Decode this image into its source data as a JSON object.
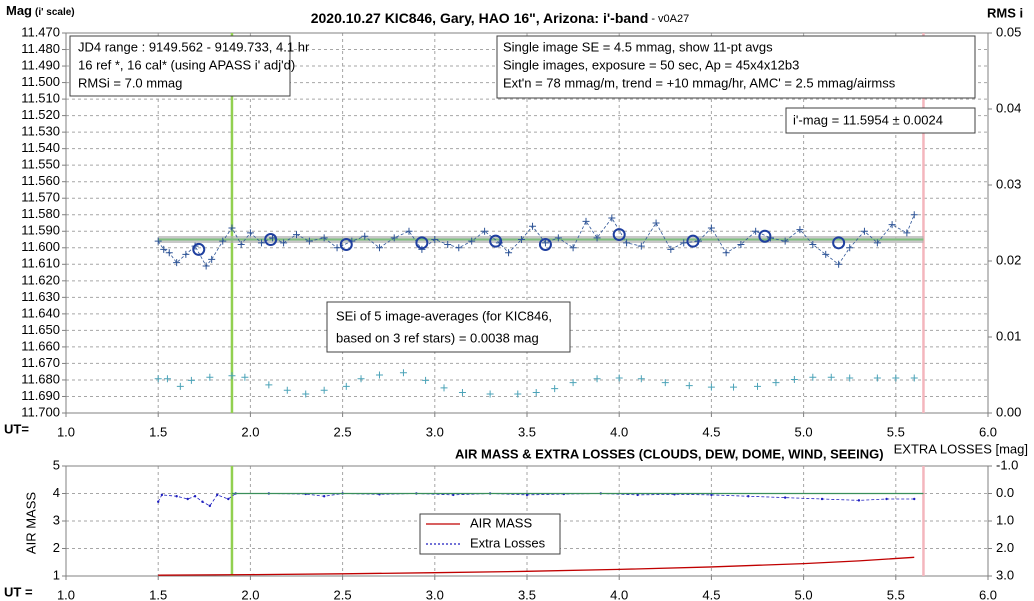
{
  "chart_data": [
    {
      "type": "scatter",
      "title": "2020.10.27 KIC846, Gary, HAO 16\", Arizona: i'-band",
      "subtitle": " - v0A27",
      "y_label": "Mag",
      "y_label_note": "(i' scale)",
      "y2_label": "RMS i",
      "x_label": "UT=",
      "xlim": [
        1.0,
        6.0
      ],
      "xticks": [
        {
          "value": 1.0,
          "label": "1.0"
        },
        {
          "value": 1.5,
          "label": "1.5"
        },
        {
          "value": 2.0,
          "label": "2.0"
        },
        {
          "value": 2.5,
          "label": "2.5"
        },
        {
          "value": 3.0,
          "label": "3.0"
        },
        {
          "value": 3.5,
          "label": "3.5"
        },
        {
          "value": 4.0,
          "label": "4.0"
        },
        {
          "value": 4.5,
          "label": "4.5"
        },
        {
          "value": 5.0,
          "label": "5.0"
        },
        {
          "value": 5.5,
          "label": "5.5"
        },
        {
          "value": 6.0,
          "label": "6.0"
        }
      ],
      "ylim": [
        11.7,
        11.47
      ],
      "yticks": [
        {
          "value": 11.47,
          "label": "11.470"
        },
        {
          "value": 11.48,
          "label": "11.480"
        },
        {
          "value": 11.49,
          "label": "11.490"
        },
        {
          "value": 11.5,
          "label": "11.500"
        },
        {
          "value": 11.51,
          "label": "11.510"
        },
        {
          "value": 11.52,
          "label": "11.520"
        },
        {
          "value": 11.53,
          "label": "11.530"
        },
        {
          "value": 11.54,
          "label": "11.540"
        },
        {
          "value": 11.55,
          "label": "11.550"
        },
        {
          "value": 11.56,
          "label": "11.560"
        },
        {
          "value": 11.57,
          "label": "11.570"
        },
        {
          "value": 11.58,
          "label": "11.580"
        },
        {
          "value": 11.59,
          "label": "11.590"
        },
        {
          "value": 11.6,
          "label": "11.600"
        },
        {
          "value": 11.61,
          "label": "11.610"
        },
        {
          "value": 11.62,
          "label": "11.620"
        },
        {
          "value": 11.63,
          "label": "11.630"
        },
        {
          "value": 11.64,
          "label": "11.640"
        },
        {
          "value": 11.65,
          "label": "11.650"
        },
        {
          "value": 11.66,
          "label": "11.660"
        },
        {
          "value": 11.67,
          "label": "11.670"
        },
        {
          "value": 11.68,
          "label": "11.680"
        },
        {
          "value": 11.69,
          "label": "11.690"
        },
        {
          "value": 11.7,
          "label": "11.700"
        }
      ],
      "y2lim": [
        0.0,
        0.05
      ],
      "y2ticks": [
        {
          "value": 0,
          "label": "0.00"
        },
        {
          "value": 0.01,
          "label": "0.01"
        },
        {
          "value": 0.02,
          "label": "0.02"
        },
        {
          "value": 0.03,
          "label": "0.03"
        },
        {
          "value": 0.04,
          "label": "0.04"
        },
        {
          "value": 0.05,
          "label": "0.05"
        }
      ],
      "grid": true,
      "vlines": [
        {
          "x": 1.9,
          "color": "#92d050"
        },
        {
          "x": 5.65,
          "color": "#f4b6bd"
        }
      ],
      "text_boxes": [
        [
          "JD4 range : 9149.562 - 9149.733, 4.1  hr",
          "16 ref *, 16 cal* (using APASS i' adj'd)",
          "RMSi = 7.0 mmag"
        ],
        [
          "Single image SE = 4.5 mmag, show 11-pt avgs",
          "Single images, exposure = 50 sec, Ap = 45x4x12b3",
          "Ext'n = 78 mmag/m, trend = +10 mmag/hr, AMC' = 2.5 mmag/airmss"
        ],
        [
          "i'-mag = 11.5954 ± 0.0024"
        ],
        [
          "SEi of 5 image-averages (for KIC846,",
          "based on 3 ref stars) = 0.0038 mag"
        ]
      ],
      "series": [
        {
          "style": "band",
          "color": "#7fbf7f",
          "x": [
            1.5,
            5.65
          ],
          "values": [
            11.595,
            11.595
          ]
        },
        {
          "style": "dashed-crosses",
          "color": "#2f5597",
          "x": [
            1.5,
            1.53,
            1.56,
            1.6,
            1.65,
            1.7,
            1.76,
            1.79,
            1.85,
            1.9,
            1.95,
            2.0,
            2.06,
            2.12,
            2.18,
            2.25,
            2.32,
            2.4,
            2.47,
            2.55,
            2.62,
            2.7,
            2.78,
            2.86,
            2.93,
            3.0,
            3.07,
            3.13,
            3.2,
            3.27,
            3.35,
            3.4,
            3.47,
            3.53,
            3.6,
            3.67,
            3.75,
            3.82,
            3.88,
            3.96,
            4.04,
            4.12,
            4.2,
            4.28,
            4.35,
            4.43,
            4.5,
            4.58,
            4.66,
            4.74,
            4.82,
            4.9,
            4.98,
            5.05,
            5.12,
            5.19,
            5.25,
            5.33,
            5.4,
            5.48,
            5.56,
            5.6
          ],
          "values": [
            11.596,
            11.601,
            11.603,
            11.609,
            11.604,
            11.599,
            11.611,
            11.607,
            11.596,
            11.588,
            11.598,
            11.591,
            11.597,
            11.594,
            11.597,
            11.592,
            11.596,
            11.594,
            11.6,
            11.596,
            11.593,
            11.6,
            11.594,
            11.59,
            11.601,
            11.595,
            11.598,
            11.6,
            11.596,
            11.59,
            11.597,
            11.603,
            11.595,
            11.587,
            11.597,
            11.594,
            11.6,
            11.584,
            11.594,
            11.582,
            11.597,
            11.599,
            11.585,
            11.601,
            11.597,
            11.596,
            11.588,
            11.603,
            11.598,
            11.59,
            11.594,
            11.596,
            11.589,
            11.598,
            11.604,
            11.61,
            11.6,
            11.59,
            11.597,
            11.586,
            11.591,
            11.58
          ]
        },
        {
          "style": "circles",
          "color": "#1f3f9f",
          "x": [
            1.72,
            2.11,
            2.52,
            2.93,
            3.33,
            3.6,
            4.0,
            4.4,
            4.79,
            5.19
          ],
          "values": [
            11.601,
            11.595,
            11.598,
            11.597,
            11.596,
            11.598,
            11.592,
            11.596,
            11.593,
            11.597
          ]
        },
        {
          "style": "crosses",
          "color": "#4ba3b8",
          "axis": "y2",
          "x": [
            1.5,
            1.55,
            1.62,
            1.68,
            1.78,
            1.9,
            1.97,
            2.1,
            2.2,
            2.3,
            2.4,
            2.52,
            2.6,
            2.7,
            2.83,
            2.95,
            3.05,
            3.15,
            3.3,
            3.45,
            3.55,
            3.65,
            3.75,
            3.88,
            4.0,
            4.12,
            4.25,
            4.38,
            4.5,
            4.62,
            4.75,
            4.85,
            4.95,
            5.05,
            5.15,
            5.25,
            5.4,
            5.5,
            5.6
          ],
          "values": [
            0.0045,
            0.0045,
            0.0035,
            0.0043,
            0.0047,
            0.0049,
            0.0047,
            0.0037,
            0.003,
            0.0025,
            0.003,
            0.0035,
            0.0045,
            0.005,
            0.0053,
            0.0043,
            0.0033,
            0.0027,
            0.0025,
            0.0025,
            0.0027,
            0.0032,
            0.004,
            0.0045,
            0.0046,
            0.0045,
            0.004,
            0.0036,
            0.0034,
            0.0034,
            0.0035,
            0.004,
            0.0044,
            0.0047,
            0.0047,
            0.0046,
            0.0046,
            0.0046,
            0.0046
          ]
        }
      ]
    },
    {
      "type": "line",
      "title": "AIR MASS & EXTRA LOSSES (CLOUDS, DEW, DOME, WIND, SEEING)",
      "y_label": "AIR MASS",
      "y2_label": "EXTRA LOSSES [mag]",
      "x_label": "UT =",
      "xlim": [
        1.0,
        6.0
      ],
      "xticks": [
        {
          "value": 1.0,
          "label": "1.0"
        },
        {
          "value": 1.5,
          "label": "1.5"
        },
        {
          "value": 2.0,
          "label": "2.0"
        },
        {
          "value": 2.5,
          "label": "2.5"
        },
        {
          "value": 3.0,
          "label": "3.0"
        },
        {
          "value": 3.5,
          "label": "3.5"
        },
        {
          "value": 4.0,
          "label": "4.0"
        },
        {
          "value": 4.5,
          "label": "4.5"
        },
        {
          "value": 5.0,
          "label": "5.0"
        },
        {
          "value": 5.5,
          "label": "5.5"
        },
        {
          "value": 6.0,
          "label": "6.0"
        }
      ],
      "ylim": [
        1,
        5
      ],
      "yticks": [
        1,
        2,
        3,
        4,
        5
      ],
      "y2lim": [
        3.0,
        -1.0
      ],
      "y2ticks": [
        {
          "value": -1,
          "label": "-1.0"
        },
        {
          "value": 0,
          "label": "0.0"
        },
        {
          "value": 1,
          "label": "1.0"
        },
        {
          "value": 2,
          "label": "2.0"
        },
        {
          "value": 3,
          "label": "3.0"
        }
      ],
      "grid": true,
      "vlines": [
        {
          "x": 1.9,
          "color": "#92d050"
        },
        {
          "x": 5.65,
          "color": "#f4b6bd"
        }
      ],
      "legend": "center",
      "series": [
        {
          "name": "AIR MASS",
          "style": "line",
          "color": "#c00000",
          "x": [
            1.5,
            2.0,
            2.5,
            3.0,
            3.5,
            4.0,
            4.5,
            5.0,
            5.3,
            5.6
          ],
          "values": [
            1.03,
            1.05,
            1.08,
            1.12,
            1.17,
            1.24,
            1.33,
            1.45,
            1.55,
            1.68
          ]
        },
        {
          "name": "Extra Losses",
          "style": "dashed-dots",
          "color": "#1f1fbf",
          "axis": "y2",
          "x": [
            1.5,
            1.52,
            1.6,
            1.66,
            1.7,
            1.74,
            1.78,
            1.82,
            1.88,
            1.92,
            2.1,
            2.3,
            2.4,
            2.5,
            2.7,
            2.9,
            3.1,
            3.3,
            3.5,
            3.7,
            3.9,
            4.1,
            4.3,
            4.5,
            4.7,
            4.9,
            5.1,
            5.3,
            5.45,
            5.6
          ],
          "values": [
            0.3,
            0.05,
            0.1,
            0.2,
            0.1,
            0.3,
            0.45,
            0.05,
            0.2,
            0.0,
            0.0,
            0.02,
            0.1,
            0.0,
            0.03,
            0.0,
            0.05,
            0.0,
            0.05,
            0.02,
            0.0,
            0.05,
            0.03,
            0.05,
            0.1,
            0.15,
            0.2,
            0.25,
            0.2,
            0.2
          ]
        },
        {
          "style": "line",
          "color": "#3a8f5a",
          "axis": "y2",
          "x": [
            1.9,
            5.65
          ],
          "values": [
            0.0,
            0.0
          ]
        }
      ]
    }
  ]
}
